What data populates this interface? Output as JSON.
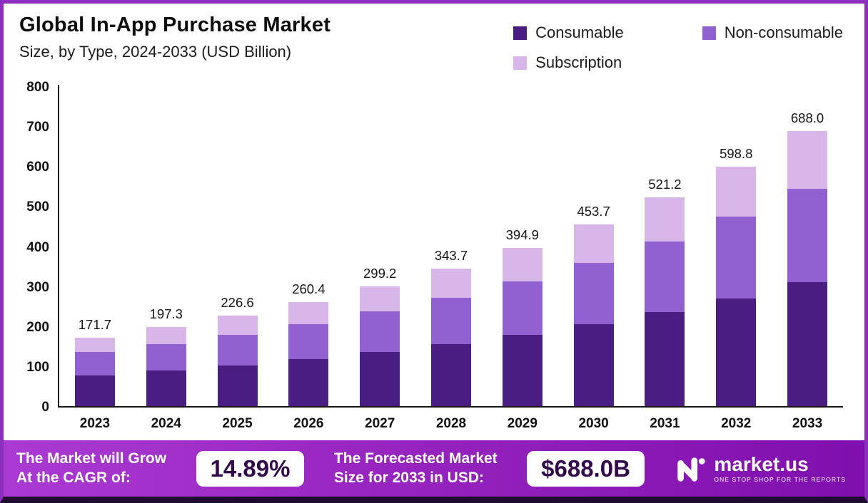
{
  "header": {
    "title": "Global In-App Purchase Market",
    "subtitle": "Size, by Type, 2024-2033 (USD Billion)"
  },
  "legend": [
    {
      "label": "Consumable",
      "color": "#4a1e80"
    },
    {
      "label": "Non-consumable",
      "color": "#9161d0"
    },
    {
      "label": "Subscription",
      "color": "#d9b6ea"
    }
  ],
  "chart_data": {
    "type": "bar",
    "subtype": "stacked",
    "title": "Global In-App Purchase Market",
    "subtitle": "Size, by Type, 2024-2033 (USD Billion)",
    "categories": [
      "2023",
      "2024",
      "2025",
      "2026",
      "2027",
      "2028",
      "2029",
      "2030",
      "2031",
      "2032",
      "2033"
    ],
    "totals": [
      171.7,
      197.3,
      226.6,
      260.4,
      299.2,
      343.7,
      394.9,
      453.7,
      521.2,
      598.8,
      688.0
    ],
    "series": [
      {
        "name": "Consumable",
        "color": "#4a1e80",
        "values": [
          77.3,
          88.8,
          102.0,
          117.2,
          134.6,
          154.7,
          177.7,
          204.2,
          234.5,
          269.5,
          309.6
        ]
      },
      {
        "name": "Non-consumable",
        "color": "#9161d0",
        "values": [
          58.4,
          67.1,
          77.0,
          88.5,
          101.7,
          116.9,
          134.3,
          154.3,
          177.2,
          203.6,
          234.0
        ]
      },
      {
        "name": "Subscription",
        "color": "#d9b6ea",
        "values": [
          36.0,
          41.4,
          47.6,
          54.7,
          62.9,
          72.1,
          82.9,
          95.2,
          109.5,
          125.7,
          144.4
        ]
      }
    ],
    "ylim": [
      0,
      800
    ],
    "yticks": [
      0,
      100,
      200,
      300,
      400,
      500,
      600,
      700,
      800
    ],
    "grid": false,
    "legend_position": "top-right",
    "xlabel": "",
    "ylabel": ""
  },
  "banner": {
    "growth_text_line1": "The Market will Grow",
    "growth_text_line2": "At the CAGR of:",
    "cagr_value": "14.89%",
    "forecast_text_line1": "The Forecasted Market",
    "forecast_text_line2": "Size for 2033 in USD:",
    "forecast_value": "$688.0B",
    "logo_text": "market.us",
    "logo_tagline": "ONE STOP SHOP FOR THE REPORTS"
  }
}
